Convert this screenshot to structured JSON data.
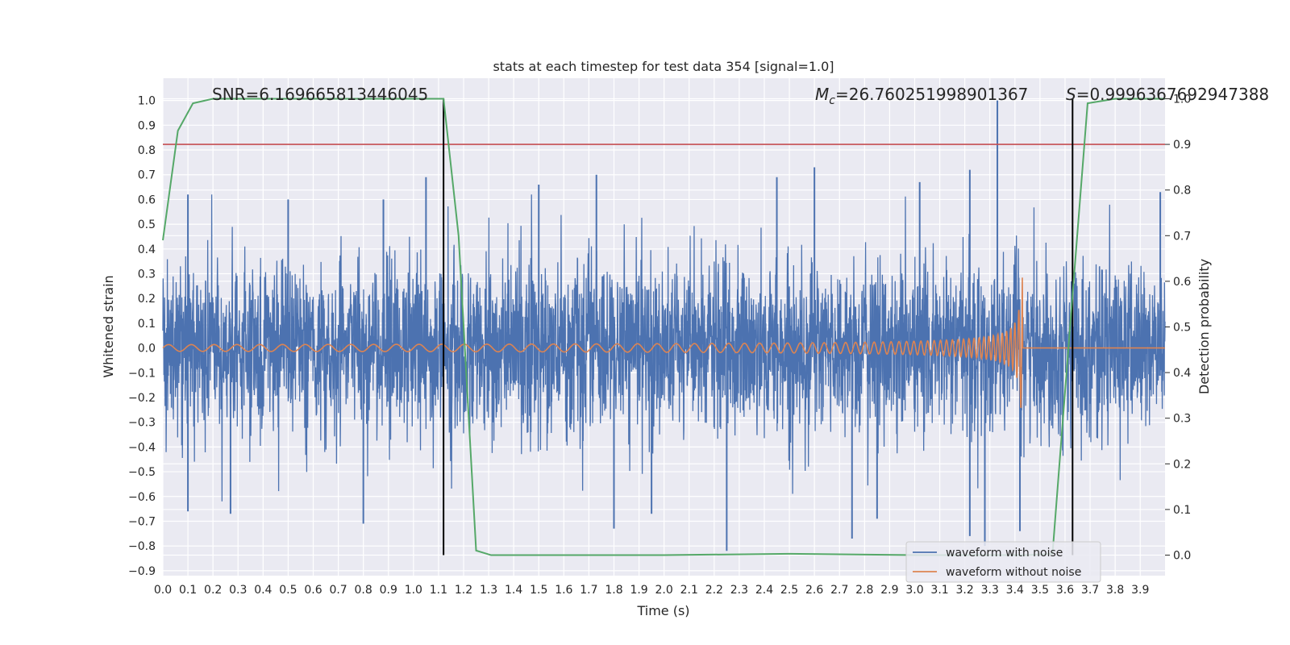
{
  "chart_data": {
    "type": "line",
    "title": "stats at each timestep for test data 354 [signal=1.0]",
    "xlabel": "Time (s)",
    "ylabel": "Whitened strain",
    "y2label": "Detection probability",
    "xlim": [
      0.0,
      3.999
    ],
    "ylim": [
      -0.92,
      1.09
    ],
    "y2lim": [
      -0.045,
      1.045
    ],
    "xticks": [
      "0.0",
      "0.1",
      "0.2",
      "0.3",
      "0.4",
      "0.5",
      "0.6",
      "0.7",
      "0.8",
      "0.9",
      "1.0",
      "1.1",
      "1.2",
      "1.3",
      "1.4",
      "1.5",
      "1.6",
      "1.7",
      "1.8",
      "1.9",
      "2.0",
      "2.1",
      "2.2",
      "2.3",
      "2.4",
      "2.5",
      "2.6",
      "2.7",
      "2.8",
      "2.9",
      "3.0",
      "3.1",
      "3.2",
      "3.3",
      "3.4",
      "3.5",
      "3.6",
      "3.7",
      "3.8",
      "3.9"
    ],
    "yticks": [
      "1.0",
      "0.9",
      "0.8",
      "0.7",
      "0.6",
      "0.5",
      "0.4",
      "0.3",
      "0.2",
      "0.1",
      "0.0",
      "−0.1",
      "−0.2",
      "−0.3",
      "−0.4",
      "−0.5",
      "−0.6",
      "−0.7",
      "−0.8",
      "−0.9"
    ],
    "y2ticks": [
      "1.0",
      "0.9",
      "0.8",
      "0.7",
      "0.6",
      "0.5",
      "0.4",
      "0.3",
      "0.2",
      "0.1",
      "0.0"
    ],
    "grid": true,
    "legend_position": "bottom-right",
    "annotations": {
      "snr": "SNR=6.169665813446045",
      "mc_symbol": "M",
      "mc_sub": "c",
      "mc_value": "=26.760251998901367",
      "s_symbol": "S",
      "s_value": "=0.9996367692947388"
    },
    "series": [
      {
        "name": "waveform with noise",
        "color": "#4c72b0",
        "kind": "noise",
        "envelope": 0.5,
        "spikes": [
          [
            0.1,
            0.62
          ],
          [
            0.5,
            0.6
          ],
          [
            0.88,
            0.6
          ],
          [
            1.05,
            0.69
          ],
          [
            1.5,
            0.66
          ],
          [
            1.73,
            0.7
          ],
          [
            2.45,
            0.69
          ],
          [
            2.6,
            0.73
          ],
          [
            3.02,
            0.67
          ],
          [
            3.22,
            0.72
          ],
          [
            3.33,
            1.0
          ],
          [
            3.98,
            0.63
          ],
          [
            0.1,
            -0.66
          ],
          [
            0.27,
            -0.67
          ],
          [
            0.8,
            -0.71
          ],
          [
            1.8,
            -0.73
          ],
          [
            1.95,
            -0.67
          ],
          [
            2.25,
            -0.82
          ],
          [
            2.75,
            -0.77
          ],
          [
            2.85,
            -0.69
          ],
          [
            3.22,
            -0.76
          ],
          [
            3.28,
            -0.8
          ],
          [
            3.42,
            -0.74
          ]
        ]
      },
      {
        "name": "waveform without noise",
        "color": "#dd8452",
        "kind": "chirp",
        "t_merge": 3.43,
        "amp_start": 0.008,
        "amp_peak": 0.33,
        "f_start": 11,
        "f_end": 65
      },
      {
        "name": "detection probability",
        "color": "#55a868",
        "axis": "right",
        "x": [
          0.0,
          0.06,
          0.12,
          0.2,
          0.4,
          0.6,
          0.8,
          1.0,
          1.12,
          1.18,
          1.25,
          1.31,
          1.5,
          2.0,
          2.5,
          3.0,
          3.3,
          3.45,
          3.55,
          3.62,
          3.69,
          3.8,
          3.999
        ],
        "values": [
          0.69,
          0.93,
          0.99,
          1.0,
          1.0,
          1.0,
          1.0,
          1.0,
          1.0,
          0.7,
          0.01,
          0.0,
          0.0,
          0.0,
          0.003,
          0.0,
          0.0,
          0.0,
          0.003,
          0.5,
          0.99,
          1.0,
          1.0
        ]
      }
    ],
    "threshold": {
      "color": "#c44e52",
      "value": 0.9,
      "axis": "right"
    },
    "vlines": [
      1.12,
      3.63
    ]
  }
}
